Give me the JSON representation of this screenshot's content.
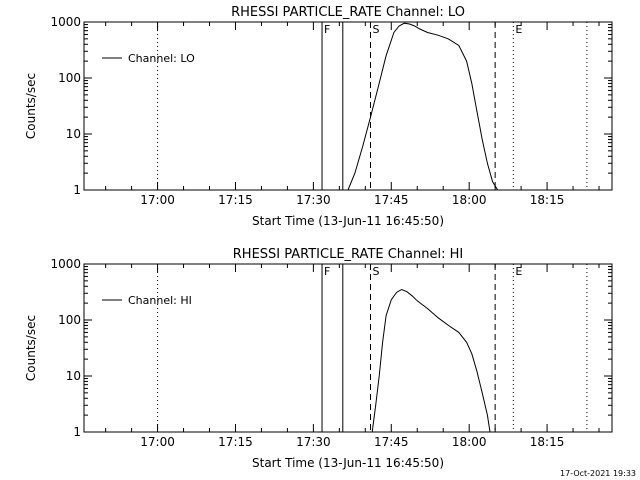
{
  "footer": {
    "timestamp": "17-Oct-2021 19:33"
  },
  "chart_data": [
    {
      "type": "line",
      "title": "RHESSI PARTICLE_RATE Channel: LO",
      "xlabel": "Start Time (13-Jun-11 16:45:50)",
      "ylabel": "Counts/sec",
      "y_scale": "log",
      "xlim": [
        "16:45:50",
        "18:27:30"
      ],
      "ylim": [
        1,
        1000
      ],
      "x_ticks": [
        "17:00",
        "17:15",
        "17:30",
        "17:45",
        "18:00",
        "18:15"
      ],
      "y_ticks": [
        "1",
        "10",
        "100",
        "1000"
      ],
      "legend": {
        "position": "top-left",
        "entries": [
          "Channel: LO"
        ]
      },
      "markers": [
        {
          "label": "F",
          "style": "solid",
          "times": [
            "17:31:40",
            "17:35:40"
          ]
        },
        {
          "label": "S",
          "style": "dashed",
          "times": [
            "17:41:00",
            "18:05:00"
          ]
        },
        {
          "label": "E",
          "style": "dotted",
          "times": [
            "18:08:30"
          ]
        },
        {
          "label": "",
          "style": "dotted",
          "times": [
            "17:00:00",
            "18:22:40"
          ]
        }
      ],
      "series": [
        {
          "name": "Channel: LO",
          "x": [
            "17:36:40",
            "17:38:00",
            "17:39:30",
            "17:41:00",
            "17:42:30",
            "17:44:00",
            "17:45:30",
            "17:46:30",
            "17:47:30",
            "17:48:30",
            "17:49:30",
            "17:50:30",
            "17:52:00",
            "17:54:00",
            "17:56:00",
            "17:58:00",
            "17:59:30",
            "18:00:30",
            "18:01:30",
            "18:02:30",
            "18:03:30",
            "18:04:30",
            "18:05:30"
          ],
          "y": [
            1,
            2,
            6,
            20,
            70,
            250,
            650,
            850,
            950,
            920,
            850,
            750,
            650,
            580,
            500,
            380,
            200,
            80,
            25,
            8,
            3,
            1.4,
            1
          ]
        }
      ]
    },
    {
      "type": "line",
      "title": "RHESSI PARTICLE_RATE Channel: HI",
      "xlabel": "Start Time (13-Jun-11 16:45:50)",
      "ylabel": "Counts/sec",
      "y_scale": "log",
      "xlim": [
        "16:45:50",
        "18:27:30"
      ],
      "ylim": [
        1,
        1000
      ],
      "x_ticks": [
        "17:00",
        "17:15",
        "17:30",
        "17:45",
        "18:00",
        "18:15"
      ],
      "y_ticks": [
        "1",
        "10",
        "100",
        "1000"
      ],
      "legend": {
        "position": "top-left",
        "entries": [
          "Channel: HI"
        ]
      },
      "markers": [
        {
          "label": "F",
          "style": "solid",
          "times": [
            "17:31:40",
            "17:35:40"
          ]
        },
        {
          "label": "S",
          "style": "dashed",
          "times": [
            "17:41:00",
            "18:05:00"
          ]
        },
        {
          "label": "E",
          "style": "dotted",
          "times": [
            "18:08:30"
          ]
        },
        {
          "label": "",
          "style": "dotted",
          "times": [
            "17:00:00",
            "18:22:40"
          ]
        }
      ],
      "series": [
        {
          "name": "Channel: HI",
          "x": [
            "17:41:20",
            "17:42:00",
            "17:42:40",
            "17:43:20",
            "17:44:00",
            "17:45:00",
            "17:46:00",
            "17:47:00",
            "17:48:00",
            "17:49:00",
            "17:50:00",
            "17:52:00",
            "17:54:00",
            "17:56:00",
            "17:58:00",
            "17:59:30",
            "18:00:30",
            "18:01:30",
            "18:02:30",
            "18:03:30",
            "18:04:00"
          ],
          "y": [
            1,
            3,
            10,
            40,
            120,
            230,
            310,
            350,
            320,
            270,
            220,
            160,
            110,
            80,
            60,
            40,
            25,
            12,
            5,
            2,
            1
          ]
        }
      ]
    }
  ]
}
